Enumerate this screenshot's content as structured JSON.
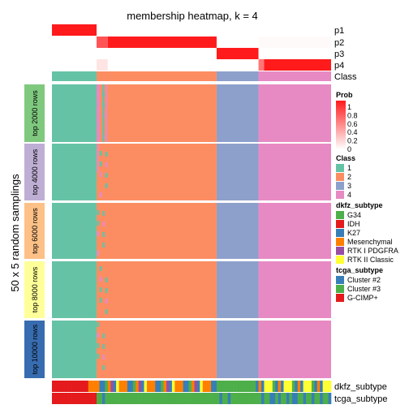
{
  "chart_data": {
    "type": "heatmap",
    "title": "membership heatmap, k = 4",
    "ylabel": "50 x 5 random samplings",
    "samples": 100,
    "class_order": [
      "1",
      "2",
      "3",
      "4"
    ],
    "top_tracks": [
      {
        "name": "p1",
        "segments": [
          {
            "start": 0,
            "end": 16,
            "prob": 1.0
          },
          {
            "start": 16,
            "end": 20,
            "prob": 0.0
          },
          {
            "start": 20,
            "end": 100,
            "prob": 0.0
          }
        ]
      },
      {
        "name": "p2",
        "segments": [
          {
            "start": 0,
            "end": 16,
            "prob": 0.0
          },
          {
            "start": 16,
            "end": 20,
            "prob": 0.75
          },
          {
            "start": 20,
            "end": 59,
            "prob": 1.0
          },
          {
            "start": 59,
            "end": 74,
            "prob": 0.0
          },
          {
            "start": 74,
            "end": 100,
            "prob": 0.02
          }
        ]
      },
      {
        "name": "p3",
        "segments": [
          {
            "start": 0,
            "end": 59,
            "prob": 0.0
          },
          {
            "start": 59,
            "end": 74,
            "prob": 1.0
          },
          {
            "start": 74,
            "end": 100,
            "prob": 0.0
          }
        ]
      },
      {
        "name": "p4",
        "segments": [
          {
            "start": 0,
            "end": 16,
            "prob": 0.0
          },
          {
            "start": 16,
            "end": 20,
            "prob": 0.12
          },
          {
            "start": 20,
            "end": 74,
            "prob": 0.0
          },
          {
            "start": 74,
            "end": 76,
            "prob": 0.6
          },
          {
            "start": 76,
            "end": 100,
            "prob": 1.0
          }
        ]
      },
      {
        "name": "Class",
        "classes": [
          {
            "start": 0,
            "end": 16,
            "cls": "1"
          },
          {
            "start": 16,
            "end": 59,
            "cls": "2"
          },
          {
            "start": 59,
            "end": 74,
            "cls": "3"
          },
          {
            "start": 74,
            "end": 100,
            "cls": "4"
          }
        ]
      }
    ],
    "row_groups": [
      {
        "label": "top 2000 rows",
        "color": "#7FC97F"
      },
      {
        "label": "top 4000 rows",
        "color": "#BEAED4"
      },
      {
        "label": "top 6000 rows",
        "color": "#FDC086"
      },
      {
        "label": "top 8000 rows",
        "color": "#FFFF99"
      },
      {
        "label": "top 10000 rows",
        "color": "#386CB0"
      }
    ],
    "bottom_tracks": [
      {
        "name": "dkfz_subtype"
      },
      {
        "name": "tcga_subtype"
      }
    ],
    "legends": [
      {
        "title": "Prob",
        "type": "gradient",
        "ticks": [
          "1",
          "0.8",
          "0.6",
          "0.4",
          "0.2",
          "0"
        ]
      },
      {
        "title": "Class",
        "type": "discrete",
        "items": [
          {
            "label": "1",
            "color": "#66C2A5"
          },
          {
            "label": "2",
            "color": "#FC8D62"
          },
          {
            "label": "3",
            "color": "#8DA0CB"
          },
          {
            "label": "4",
            "color": "#E78AC3"
          }
        ]
      },
      {
        "title": "dkfz_subtype",
        "type": "discrete",
        "items": [
          {
            "label": "G34",
            "color": "#4DAF4A"
          },
          {
            "label": "IDH",
            "color": "#E41A1C"
          },
          {
            "label": "K27",
            "color": "#377EB8"
          },
          {
            "label": "Mesenchymal",
            "color": "#FF7F00"
          },
          {
            "label": "RTK I PDGFRA",
            "color": "#984EA3"
          },
          {
            "label": "RTK II Classic",
            "color": "#FFFF33"
          }
        ]
      },
      {
        "title": "tcga_subtype",
        "type": "discrete",
        "items": [
          {
            "label": "Cluster #2",
            "color": "#377EB8"
          },
          {
            "label": "Cluster #3",
            "color": "#4DAF4A"
          },
          {
            "label": "G-CIMP+",
            "color": "#E41A1C"
          }
        ]
      }
    ]
  }
}
